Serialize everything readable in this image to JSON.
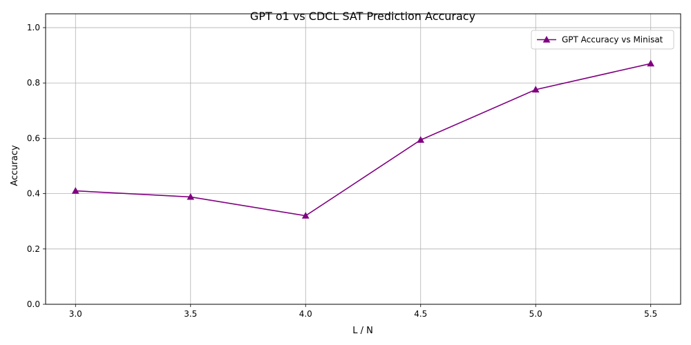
{
  "chart_data": {
    "type": "line",
    "title": "GPT o1 vs CDCL SAT Prediction Accuracy",
    "xlabel": "L / N",
    "ylabel": "Accuracy",
    "xlim": [
      2.87,
      5.63
    ],
    "ylim": [
      0.0,
      1.05
    ],
    "xticks": [
      3.0,
      3.5,
      4.0,
      4.5,
      5.0,
      5.5
    ],
    "xtick_labels": [
      "3.0",
      "3.5",
      "4.0",
      "4.5",
      "5.0",
      "5.5"
    ],
    "yticks": [
      0.0,
      0.2,
      0.4,
      0.6,
      0.8,
      1.0
    ],
    "ytick_labels": [
      "0.0",
      "0.2",
      "0.4",
      "0.6",
      "0.8",
      "1.0"
    ],
    "grid": true,
    "legend_position": "top-right",
    "series": [
      {
        "name": "GPT Accuracy vs Minisat",
        "color": "#800080",
        "marker": "triangle-up",
        "x": [
          3.0,
          3.5,
          4.0,
          4.5,
          5.0,
          5.5
        ],
        "y": [
          0.41,
          0.388,
          0.32,
          0.594,
          0.776,
          0.87
        ]
      }
    ]
  }
}
